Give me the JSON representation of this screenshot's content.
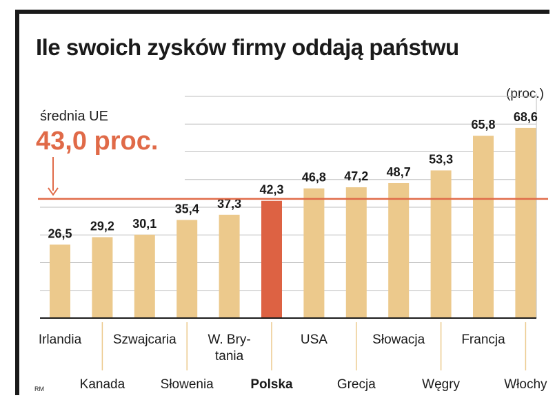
{
  "chart_data": {
    "type": "bar",
    "title": "Ile swoich zysków firmy oddają państwu",
    "unit_label": "(proc.)",
    "categories": [
      "Irlandia",
      "Kanada",
      "Szwajcaria",
      "Słowenia",
      "W. Bry-tania",
      "Polska",
      "USA",
      "Grecja",
      "Słowacja",
      "Węgry",
      "Francja",
      "Włochy"
    ],
    "category_lines": [
      [
        "Irlandia"
      ],
      [
        "Kanada"
      ],
      [
        "Szwajcaria"
      ],
      [
        "Słowenia"
      ],
      [
        "W. Bry-",
        "tania"
      ],
      [
        "Polska"
      ],
      [
        "USA"
      ],
      [
        "Grecja"
      ],
      [
        "Słowacja"
      ],
      [
        "Węgry"
      ],
      [
        "Francja"
      ],
      [
        "Włochy"
      ]
    ],
    "values": [
      26.5,
      29.2,
      30.1,
      35.4,
      37.3,
      42.3,
      46.8,
      47.2,
      48.7,
      53.3,
      65.8,
      68.6
    ],
    "value_labels": [
      "26,5",
      "29,2",
      "30,1",
      "35,4",
      "37,3",
      "42,3",
      "46,8",
      "47,2",
      "48,7",
      "53,3",
      "65,8",
      "68,6"
    ],
    "highlight": "Polska",
    "reference_line": {
      "label": "średnia UE",
      "value": 43.0,
      "value_label": "43,0 proc."
    },
    "ylim": [
      0,
      80
    ],
    "grid": true,
    "colors": {
      "bar": "#ecc98c",
      "highlight": "#dd6243",
      "reference": "#e06a48",
      "grid": "#bdbdbd"
    }
  },
  "footer": {
    "credit": "RM"
  }
}
